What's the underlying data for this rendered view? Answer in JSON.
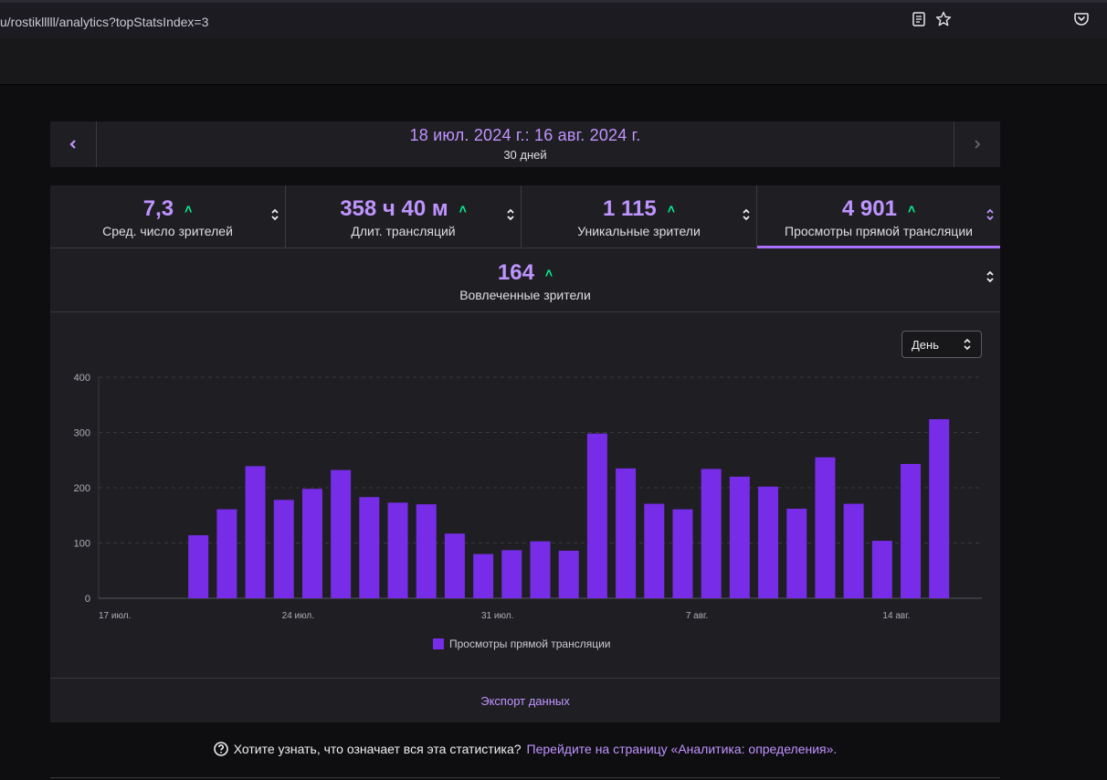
{
  "browser": {
    "url": "u/rostiklllll/analytics?topStatsIndex=3"
  },
  "date_nav": {
    "range": "18 июл. 2024 г.: 16 авг. 2024 г.",
    "days": "30 дней",
    "prev_icon": "chevron-left-icon",
    "next_icon": "chevron-right-icon"
  },
  "stats": [
    {
      "value": "7,3",
      "label": "Сред. число зрителей"
    },
    {
      "value": "358 ч 40 м",
      "label": "Длит. трансляций"
    },
    {
      "value": "1 115",
      "label": "Уникальные зрители"
    },
    {
      "value": "4 901",
      "label": "Просмотры прямой трансляции"
    }
  ],
  "stat_extra": {
    "value": "164",
    "label": "Вовлеченные зрители"
  },
  "up_arrow": "˄",
  "period_select": {
    "value": "День"
  },
  "export_label": "Экспорт данных",
  "help": {
    "text": "Хотите узнать, что означает вся эта статистика?",
    "link": "Перейдите на страницу «Аналитика: определения»."
  },
  "colors": {
    "accent": "#bf94ff",
    "bar": "#772ce8",
    "up": "#00f593"
  },
  "chart_data": {
    "type": "bar",
    "series": [
      {
        "name": "Просмотры прямой трансляции",
        "values": [
          0,
          0,
          0,
          114,
          161,
          239,
          178,
          198,
          232,
          183,
          173,
          170,
          117,
          80,
          87,
          103,
          86,
          298,
          235,
          171,
          161,
          234,
          220,
          202,
          162,
          255,
          171,
          104,
          243,
          324,
          0
        ]
      }
    ],
    "x_labels": [
      {
        "index": 0,
        "label": "17 июл."
      },
      {
        "index": 7,
        "label": "24 июл."
      },
      {
        "index": 14,
        "label": "31 июл."
      },
      {
        "index": 21,
        "label": "7 авг."
      },
      {
        "index": 28,
        "label": "14 авг."
      }
    ],
    "y_ticks": [
      0,
      100,
      200,
      300,
      400
    ],
    "ylim": [
      0,
      400
    ],
    "legend": "Просмотры прямой трансляции",
    "grid": true
  }
}
